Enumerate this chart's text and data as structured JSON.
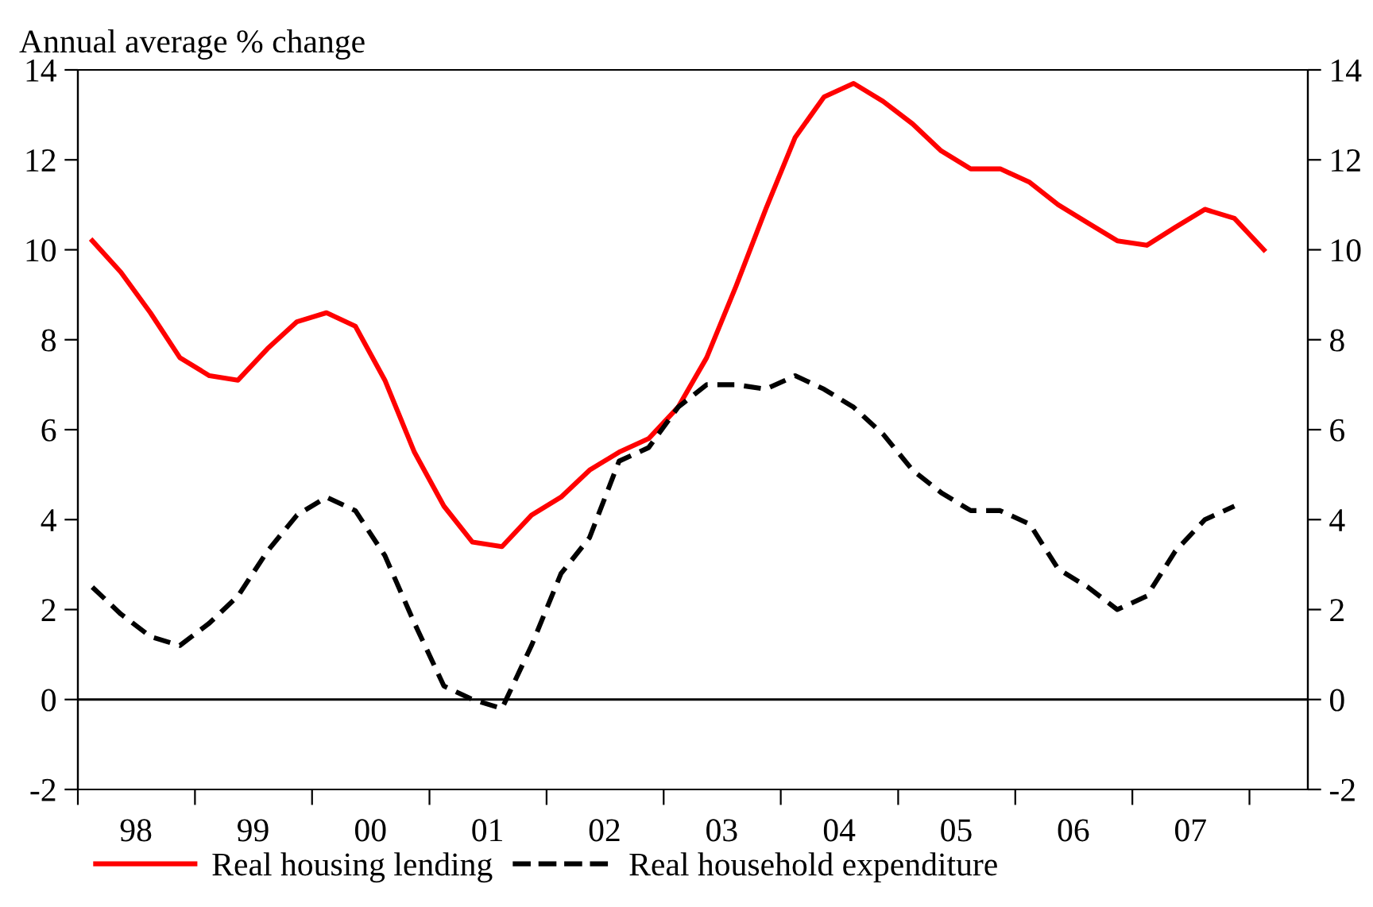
{
  "chart_data": {
    "type": "line",
    "ylabel": "Annual average % change",
    "x": [
      "1998-02-15",
      "1998-05-15",
      "1998-08-15",
      "1998-11-15",
      "1999-02-15",
      "1999-05-15",
      "1999-08-15",
      "1999-11-15",
      "2000-02-15",
      "2000-05-15",
      "2000-08-15",
      "2000-11-15",
      "2001-02-15",
      "2001-05-15",
      "2001-08-15",
      "2001-11-15",
      "2002-02-15",
      "2002-05-15",
      "2002-08-15",
      "2002-11-15",
      "2003-02-15",
      "2003-05-15",
      "2003-08-15",
      "2003-11-15",
      "2004-02-15",
      "2004-05-15",
      "2004-08-15",
      "2004-11-15",
      "2005-02-15",
      "2005-05-15",
      "2005-08-15",
      "2005-11-15",
      "2006-02-15",
      "2006-05-15",
      "2006-08-15",
      "2006-11-15",
      "2007-02-15",
      "2007-05-15",
      "2007-08-15",
      "2007-11-15",
      "2008-02-15"
    ],
    "series": [
      {
        "name": "Real housing lending",
        "color": "#ff0000",
        "line_style": "solid",
        "values": [
          10.2,
          9.5,
          8.6,
          7.6,
          7.2,
          7.1,
          7.8,
          8.4,
          8.6,
          8.3,
          7.1,
          5.5,
          4.3,
          3.5,
          3.4,
          4.1,
          4.5,
          5.1,
          5.5,
          5.8,
          6.5,
          7.6,
          9.2,
          10.9,
          12.5,
          13.4,
          13.7,
          13.3,
          12.8,
          12.2,
          11.8,
          11.8,
          11.5,
          11.0,
          10.6,
          10.2,
          10.1,
          10.5,
          10.9,
          10.7,
          10.0
        ]
      },
      {
        "name": "Real household expenditure",
        "color": "#000000",
        "line_style": "dashed",
        "values": [
          2.5,
          1.9,
          1.4,
          1.2,
          1.7,
          2.3,
          3.3,
          4.1,
          4.5,
          4.2,
          3.2,
          1.7,
          0.3,
          0.0,
          -0.2,
          1.2,
          2.8,
          3.6,
          5.3,
          5.6,
          6.5,
          7.0,
          7.0,
          6.9,
          7.2,
          6.9,
          6.5,
          5.9,
          5.1,
          4.6,
          4.2,
          4.2,
          3.9,
          2.9,
          2.5,
          2.0,
          2.3,
          3.3,
          4.0,
          4.3,
          null
        ]
      }
    ],
    "xlim": [
      "1998-01-01",
      "2008-07-01"
    ],
    "xticks": [
      {
        "value": "1998-01-01",
        "label": null
      },
      {
        "value": "1998-07-01",
        "label": "98"
      },
      {
        "value": "1999-01-01",
        "label": null
      },
      {
        "value": "1999-07-01",
        "label": "99"
      },
      {
        "value": "2000-01-01",
        "label": null
      },
      {
        "value": "2000-07-01",
        "label": "00"
      },
      {
        "value": "2001-01-01",
        "label": null
      },
      {
        "value": "2001-07-01",
        "label": "01"
      },
      {
        "value": "2002-01-01",
        "label": null
      },
      {
        "value": "2002-07-01",
        "label": "02"
      },
      {
        "value": "2003-01-01",
        "label": null
      },
      {
        "value": "2003-07-01",
        "label": "03"
      },
      {
        "value": "2004-01-01",
        "label": null
      },
      {
        "value": "2004-07-01",
        "label": "04"
      },
      {
        "value": "2005-01-01",
        "label": null
      },
      {
        "value": "2005-07-01",
        "label": "05"
      },
      {
        "value": "2006-01-01",
        "label": null
      },
      {
        "value": "2006-07-01",
        "label": "06"
      },
      {
        "value": "2007-01-01",
        "label": null
      },
      {
        "value": "2007-07-01",
        "label": "07"
      },
      {
        "value": "2008-01-01",
        "label": null
      }
    ],
    "ylim": [
      -2,
      14
    ],
    "yticks": [
      -2,
      0,
      2,
      4,
      6,
      8,
      10,
      12,
      14
    ],
    "y2lim": [
      -2,
      14
    ],
    "y2ticks": [
      -2,
      0,
      2,
      4,
      6,
      8,
      10,
      12,
      14
    ],
    "ref_lines": [
      {
        "axis": "y",
        "value": 0,
        "color": "#000000"
      }
    ],
    "grid": false,
    "legend": "bottom"
  }
}
